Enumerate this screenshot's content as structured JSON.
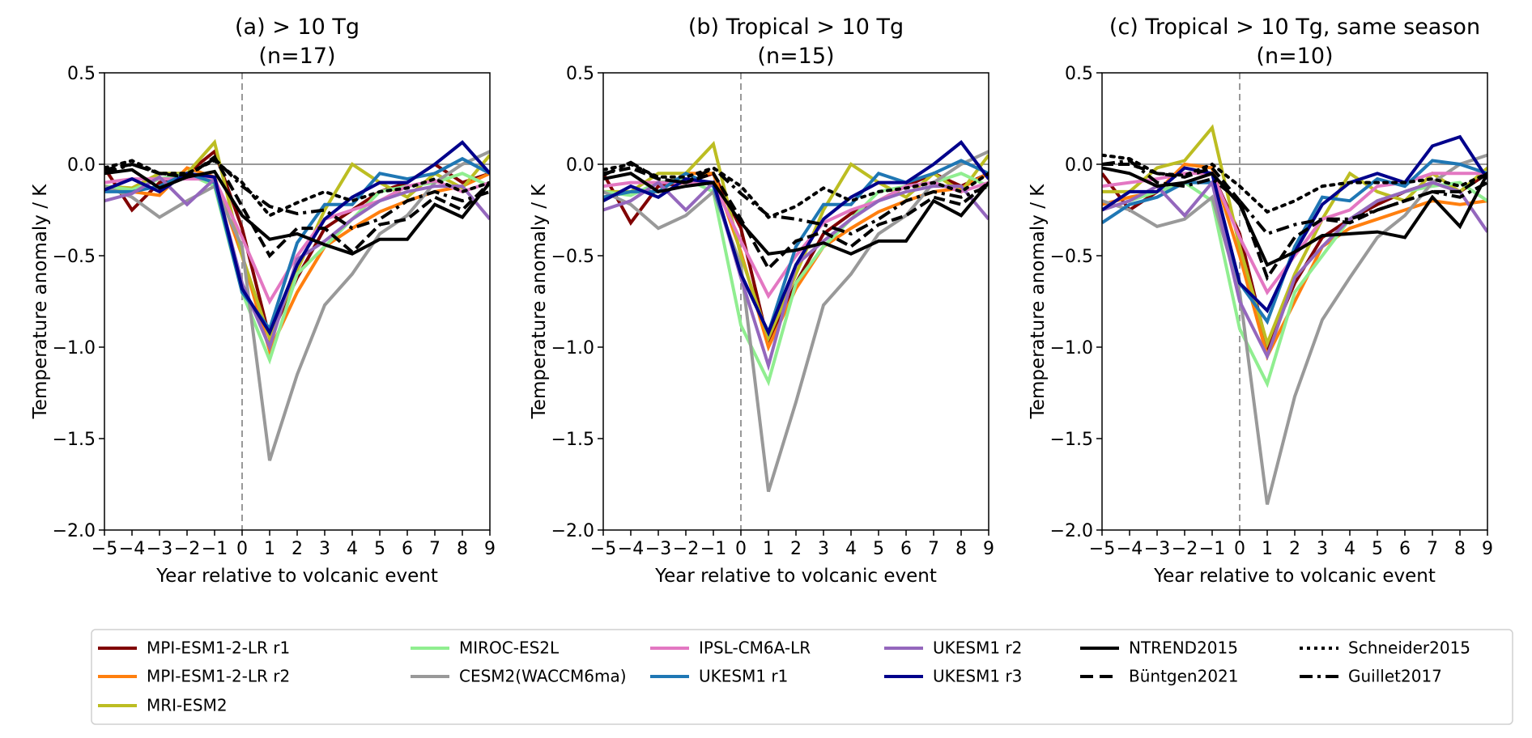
{
  "x_ticks": [
    "−5",
    "−4",
    "−3",
    "−2",
    "−1",
    "0",
    "1",
    "2",
    "3",
    "4",
    "5",
    "6",
    "7",
    "8",
    "9"
  ],
  "y_ticks": [
    "0.5",
    "0.0",
    "−0.5",
    "−1.0",
    "−1.5",
    "−2.0"
  ],
  "ylabel": "Temperature anomaly / K",
  "xlabel": "Year relative to volcanic event",
  "legend": [
    {
      "name": "MPI-ESM1-2-LR r1",
      "color": "#800000",
      "style": "solid"
    },
    {
      "name": "MPI-ESM1-2-LR r2",
      "color": "#ff7f0e",
      "style": "solid"
    },
    {
      "name": "MRI-ESM2",
      "color": "#bcbd22",
      "style": "solid"
    },
    {
      "name": "MIROC-ES2L",
      "color": "#90ee90",
      "style": "solid"
    },
    {
      "name": "CESM2(WACCM6ma)",
      "color": "#999999",
      "style": "solid"
    },
    {
      "name": "IPSL-CM6A-LR",
      "color": "#e377c2",
      "style": "solid"
    },
    {
      "name": "UKESM1 r1",
      "color": "#1f77b4",
      "style": "solid"
    },
    {
      "name": "UKESM1 r2",
      "color": "#9467bd",
      "style": "solid"
    },
    {
      "name": "UKESM1 r3",
      "color": "#00008b",
      "style": "solid"
    },
    {
      "name": "NTREND2015",
      "color": "#000000",
      "style": "solid"
    },
    {
      "name": "Büntgen2021",
      "color": "#000000",
      "style": "dashed"
    },
    {
      "name": "Schneider2015",
      "color": "#000000",
      "style": "dotted"
    },
    {
      "name": "Guillet2017",
      "color": "#000000",
      "style": "dashdot"
    }
  ],
  "chart_data": [
    {
      "type": "line",
      "title": "(a) > 10 Tg",
      "subtitle": "(n=17)",
      "xlabel": "Year relative to volcanic event",
      "ylabel": "Temperature anomaly / K",
      "x": [
        -5,
        -4,
        -3,
        -2,
        -1,
        0,
        1,
        2,
        3,
        4,
        5,
        6,
        7,
        8,
        9
      ],
      "xlim": [
        -5,
        9
      ],
      "ylim": [
        -2.0,
        0.5
      ],
      "reference_lines": {
        "horizontal_y": 0,
        "vertical_x": 0
      },
      "series": [
        {
          "name": "MPI-ESM1-2-LR r1",
          "values": [
            -0.02,
            -0.25,
            -0.1,
            -0.05,
            0.07,
            -0.35,
            -0.95,
            -0.62,
            -0.35,
            -0.25,
            -0.15,
            -0.1,
            0.0,
            -0.1,
            -0.05
          ]
        },
        {
          "name": "MPI-ESM1-2-LR r2",
          "values": [
            -0.13,
            -0.15,
            -0.17,
            -0.02,
            -0.07,
            -0.5,
            -1.02,
            -0.7,
            -0.45,
            -0.35,
            -0.26,
            -0.2,
            -0.15,
            -0.12,
            -0.05
          ]
        },
        {
          "name": "MRI-ESM2",
          "values": [
            -0.12,
            -0.13,
            -0.05,
            -0.05,
            0.12,
            -0.5,
            -0.95,
            -0.58,
            -0.25,
            0.0,
            -0.1,
            -0.18,
            -0.05,
            -0.13,
            0.05
          ]
        },
        {
          "name": "MIROC-ES2L",
          "values": [
            -0.12,
            -0.14,
            -0.08,
            -0.05,
            -0.12,
            -0.7,
            -1.07,
            -0.6,
            -0.45,
            -0.3,
            -0.15,
            -0.12,
            -0.1,
            -0.05,
            -0.12
          ]
        },
        {
          "name": "CESM2(WACCM6ma)",
          "values": [
            -0.12,
            -0.18,
            -0.29,
            -0.2,
            -0.12,
            -0.45,
            -1.62,
            -1.15,
            -0.77,
            -0.6,
            -0.38,
            -0.28,
            -0.1,
            0.0,
            0.07
          ]
        },
        {
          "name": "IPSL-CM6A-LR",
          "values": [
            -0.1,
            -0.08,
            -0.08,
            -0.08,
            -0.08,
            -0.4,
            -0.75,
            -0.5,
            -0.3,
            -0.25,
            -0.2,
            -0.12,
            -0.09,
            -0.15,
            -0.1
          ]
        },
        {
          "name": "UKESM1 r1",
          "values": [
            -0.15,
            -0.15,
            -0.12,
            -0.05,
            -0.1,
            -0.7,
            -0.9,
            -0.43,
            -0.22,
            -0.22,
            -0.05,
            -0.08,
            -0.05,
            0.03,
            -0.05
          ]
        },
        {
          "name": "UKESM1 r2",
          "values": [
            -0.2,
            -0.16,
            -0.07,
            -0.22,
            -0.08,
            -0.65,
            -1.0,
            -0.52,
            -0.42,
            -0.3,
            -0.2,
            -0.15,
            -0.12,
            -0.12,
            -0.3
          ]
        },
        {
          "name": "UKESM1 r3",
          "values": [
            -0.14,
            -0.08,
            -0.15,
            -0.05,
            -0.07,
            -0.68,
            -0.92,
            -0.55,
            -0.3,
            -0.18,
            -0.1,
            -0.1,
            0.0,
            0.12,
            -0.05
          ]
        },
        {
          "name": "NTREND2015",
          "values": [
            -0.05,
            -0.03,
            -0.13,
            -0.07,
            -0.04,
            -0.28,
            -0.41,
            -0.38,
            -0.44,
            -0.49,
            -0.41,
            -0.41,
            -0.22,
            -0.29,
            -0.1
          ]
        },
        {
          "name": "Büntgen2021",
          "values": [
            -0.03,
            0.0,
            -0.05,
            -0.07,
            0.04,
            -0.23,
            -0.5,
            -0.35,
            -0.35,
            -0.48,
            -0.33,
            -0.3,
            -0.18,
            -0.25,
            -0.1
          ]
        },
        {
          "name": "Schneider2015",
          "values": [
            -0.02,
            0.02,
            -0.05,
            -0.05,
            0.02,
            -0.1,
            -0.28,
            -0.21,
            -0.15,
            -0.2,
            -0.15,
            -0.13,
            -0.08,
            -0.15,
            -0.1
          ]
        },
        {
          "name": "Guillet2017",
          "values": [
            -0.05,
            0.0,
            -0.05,
            -0.06,
            0.03,
            -0.12,
            -0.23,
            -0.27,
            -0.25,
            -0.35,
            -0.3,
            -0.2,
            -0.15,
            -0.2,
            -0.15
          ]
        }
      ]
    },
    {
      "type": "line",
      "title": "(b) Tropical > 10 Tg",
      "subtitle": "(n=15)",
      "xlabel": "Year relative to volcanic event",
      "ylabel": "Temperature anomaly / K",
      "x": [
        -5,
        -4,
        -3,
        -2,
        -1,
        0,
        1,
        2,
        3,
        4,
        5,
        6,
        7,
        8,
        9
      ],
      "xlim": [
        -5,
        9
      ],
      "ylim": [
        -2.0,
        0.5
      ],
      "reference_lines": {
        "horizontal_y": 0,
        "vertical_x": 0
      },
      "series": [
        {
          "name": "MPI-ESM1-2-LR r1",
          "values": [
            -0.05,
            -0.32,
            -0.12,
            -0.1,
            -0.05,
            -0.35,
            -0.98,
            -0.65,
            -0.38,
            -0.27,
            -0.2,
            -0.12,
            -0.05,
            -0.12,
            -0.05
          ]
        },
        {
          "name": "MPI-ESM1-2-LR r2",
          "values": [
            -0.18,
            -0.15,
            -0.15,
            -0.05,
            -0.05,
            -0.48,
            -1.0,
            -0.68,
            -0.45,
            -0.35,
            -0.26,
            -0.2,
            -0.15,
            -0.13,
            -0.05
          ]
        },
        {
          "name": "MRI-ESM2",
          "values": [
            -0.15,
            -0.15,
            -0.05,
            -0.05,
            0.11,
            -0.5,
            -0.95,
            -0.6,
            -0.25,
            0.0,
            -0.1,
            -0.18,
            -0.05,
            -0.15,
            0.05
          ]
        },
        {
          "name": "MIROC-ES2L",
          "values": [
            -0.15,
            -0.17,
            -0.1,
            -0.08,
            -0.15,
            -0.88,
            -1.19,
            -0.65,
            -0.45,
            -0.3,
            -0.15,
            -0.12,
            -0.1,
            -0.05,
            -0.12
          ]
        },
        {
          "name": "CESM2(WACCM6ma)",
          "values": [
            -0.15,
            -0.22,
            -0.35,
            -0.28,
            -0.15,
            -0.55,
            -1.79,
            -1.3,
            -0.77,
            -0.6,
            -0.38,
            -0.28,
            -0.1,
            0.0,
            0.07
          ]
        },
        {
          "name": "IPSL-CM6A-LR",
          "values": [
            -0.12,
            -0.1,
            -0.1,
            -0.1,
            -0.1,
            -0.42,
            -0.72,
            -0.5,
            -0.32,
            -0.25,
            -0.2,
            -0.12,
            -0.1,
            -0.15,
            -0.1
          ]
        },
        {
          "name": "UKESM1 r1",
          "values": [
            -0.18,
            -0.15,
            -0.15,
            -0.05,
            -0.12,
            -0.6,
            -0.92,
            -0.45,
            -0.22,
            -0.22,
            -0.05,
            -0.1,
            -0.05,
            0.02,
            -0.05
          ]
        },
        {
          "name": "UKESM1 r2",
          "values": [
            -0.25,
            -0.2,
            -0.1,
            -0.25,
            -0.1,
            -0.62,
            -1.1,
            -0.55,
            -0.42,
            -0.3,
            -0.2,
            -0.15,
            -0.12,
            -0.12,
            -0.3
          ]
        },
        {
          "name": "UKESM1 r3",
          "values": [
            -0.2,
            -0.12,
            -0.18,
            -0.08,
            -0.1,
            -0.6,
            -0.92,
            -0.55,
            -0.3,
            -0.18,
            -0.1,
            -0.1,
            0.0,
            0.12,
            -0.08
          ]
        },
        {
          "name": "NTREND2015",
          "values": [
            -0.08,
            -0.05,
            -0.15,
            -0.12,
            -0.1,
            -0.32,
            -0.49,
            -0.47,
            -0.43,
            -0.49,
            -0.42,
            -0.42,
            -0.2,
            -0.28,
            -0.1
          ]
        },
        {
          "name": "Büntgen2021",
          "values": [
            -0.05,
            -0.02,
            -0.08,
            -0.1,
            -0.05,
            -0.3,
            -0.57,
            -0.42,
            -0.37,
            -0.45,
            -0.33,
            -0.28,
            -0.18,
            -0.22,
            -0.1
          ]
        },
        {
          "name": "Schneider2015",
          "values": [
            -0.03,
            0.0,
            -0.07,
            -0.07,
            -0.02,
            -0.12,
            -0.29,
            -0.23,
            -0.13,
            -0.2,
            -0.15,
            -0.13,
            -0.1,
            -0.15,
            -0.05
          ]
        },
        {
          "name": "Guillet2017",
          "values": [
            -0.06,
            0.01,
            -0.08,
            -0.1,
            -0.02,
            -0.16,
            -0.28,
            -0.3,
            -0.33,
            -0.38,
            -0.3,
            -0.2,
            -0.15,
            -0.18,
            -0.12
          ]
        }
      ]
    },
    {
      "type": "line",
      "title": "(c) Tropical > 10 Tg, same season",
      "subtitle": "(n=10)",
      "xlabel": "Year relative to volcanic event",
      "ylabel": "Temperature anomaly / K",
      "x": [
        -5,
        -4,
        -3,
        -2,
        -1,
        0,
        1,
        2,
        3,
        4,
        5,
        6,
        7,
        8,
        9
      ],
      "xlim": [
        -5,
        9
      ],
      "ylim": [
        -2.0,
        0.5
      ],
      "reference_lines": {
        "horizontal_y": 0,
        "vertical_x": 0
      },
      "series": [
        {
          "name": "MPI-ESM1-2-LR r1",
          "values": [
            -0.05,
            -0.25,
            -0.15,
            -0.1,
            -0.05,
            -0.38,
            -1.0,
            -0.65,
            -0.4,
            -0.3,
            -0.22,
            -0.15,
            -0.1,
            -0.15,
            -0.05
          ]
        },
        {
          "name": "MPI-ESM1-2-LR r2",
          "values": [
            -0.22,
            -0.18,
            -0.15,
            0.0,
            -0.02,
            -0.5,
            -1.05,
            -0.75,
            -0.45,
            -0.35,
            -0.3,
            -0.25,
            -0.2,
            -0.22,
            -0.2
          ]
        },
        {
          "name": "MRI-ESM2",
          "values": [
            -0.15,
            -0.15,
            -0.02,
            0.02,
            0.2,
            -0.45,
            -0.98,
            -0.6,
            -0.3,
            -0.05,
            -0.15,
            -0.2,
            -0.05,
            -0.15,
            -0.02
          ]
        },
        {
          "name": "MIROC-ES2L",
          "values": [
            -0.25,
            -0.2,
            -0.15,
            -0.1,
            -0.2,
            -0.9,
            -1.2,
            -0.7,
            -0.5,
            -0.3,
            -0.2,
            -0.15,
            -0.12,
            -0.1,
            -0.2
          ]
        },
        {
          "name": "CESM2(WACCM6ma)",
          "values": [
            -0.2,
            -0.25,
            -0.34,
            -0.3,
            -0.18,
            -0.7,
            -1.86,
            -1.27,
            -0.85,
            -0.62,
            -0.4,
            -0.28,
            -0.1,
            0.0,
            0.05
          ]
        },
        {
          "name": "IPSL-CM6A-LR",
          "values": [
            -0.12,
            -0.1,
            -0.08,
            -0.05,
            -0.05,
            -0.4,
            -0.7,
            -0.5,
            -0.3,
            -0.25,
            -0.12,
            -0.1,
            -0.05,
            -0.05,
            -0.05
          ]
        },
        {
          "name": "UKESM1 r1",
          "values": [
            -0.32,
            -0.22,
            -0.18,
            -0.1,
            -0.1,
            -0.65,
            -0.86,
            -0.45,
            -0.18,
            -0.2,
            -0.08,
            -0.12,
            0.02,
            0.0,
            -0.05
          ]
        },
        {
          "name": "UKESM1 r2",
          "values": [
            -0.25,
            -0.2,
            -0.12,
            -0.28,
            -0.1,
            -0.75,
            -1.05,
            -0.62,
            -0.45,
            -0.3,
            -0.2,
            -0.15,
            -0.1,
            -0.15,
            -0.37
          ]
        },
        {
          "name": "UKESM1 r3",
          "values": [
            -0.25,
            -0.15,
            -0.15,
            -0.02,
            -0.05,
            -0.65,
            -0.8,
            -0.48,
            -0.22,
            -0.1,
            -0.05,
            -0.1,
            0.1,
            0.15,
            -0.08
          ]
        },
        {
          "name": "NTREND2015",
          "values": [
            -0.02,
            -0.05,
            -0.12,
            -0.1,
            -0.05,
            -0.22,
            -0.55,
            -0.48,
            -0.39,
            -0.38,
            -0.37,
            -0.4,
            -0.18,
            -0.34,
            -0.05
          ]
        },
        {
          "name": "Büntgen2021",
          "values": [
            0.0,
            0.0,
            -0.05,
            -0.07,
            -0.02,
            -0.2,
            -0.62,
            -0.4,
            -0.3,
            -0.32,
            -0.25,
            -0.2,
            -0.15,
            -0.15,
            -0.05
          ]
        },
        {
          "name": "Schneider2015",
          "values": [
            0.05,
            0.03,
            -0.05,
            -0.06,
            0.0,
            -0.12,
            -0.26,
            -0.2,
            -0.12,
            -0.1,
            -0.1,
            -0.1,
            -0.08,
            -0.12,
            -0.05
          ]
        },
        {
          "name": "Guillet2017",
          "values": [
            0.0,
            0.02,
            -0.1,
            -0.12,
            -0.08,
            -0.2,
            -0.38,
            -0.33,
            -0.3,
            -0.3,
            -0.25,
            -0.2,
            -0.15,
            -0.18,
            -0.1
          ]
        }
      ]
    }
  ]
}
